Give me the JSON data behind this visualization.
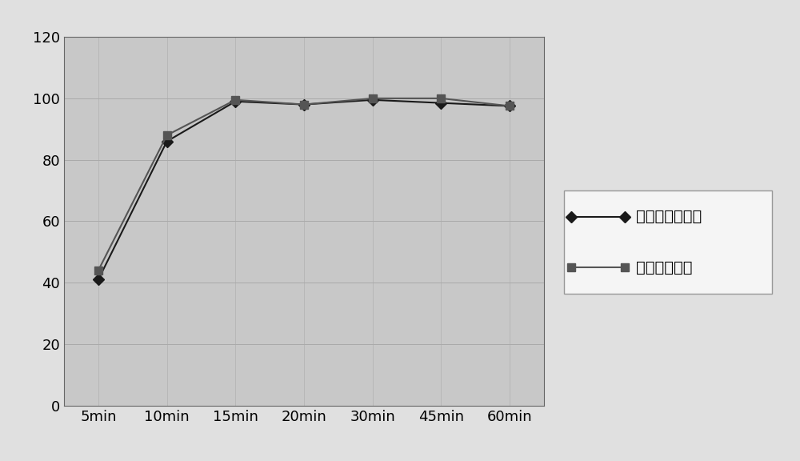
{
  "x_labels": [
    "5min",
    "10min",
    "15min",
    "20min",
    "30min",
    "45min",
    "60min"
  ],
  "x_values": [
    0,
    1,
    2,
    3,
    4,
    5,
    6
  ],
  "series1_name": "自制品氨氯地平",
  "series1_values": [
    41,
    86,
    99,
    98,
    99.5,
    98.5,
    97.5
  ],
  "series1_color": "#1a1a1a",
  "series1_marker": "D",
  "series2_name": "自制品缓沙坦",
  "series2_values": [
    44,
    88,
    99.5,
    98,
    100,
    100,
    97.5
  ],
  "series2_color": "#555555",
  "series2_marker": "s",
  "ylim": [
    0,
    120
  ],
  "yticks": [
    0,
    20,
    40,
    60,
    80,
    100,
    120
  ],
  "plot_bg_color": "#c8c8c8",
  "outer_bg_color": "#e0e0e0",
  "grid_color": "#aaaaaa",
  "legend_bg": "#f5f5f5",
  "legend_edge": "#999999",
  "linewidth": 1.5,
  "markersize": 7,
  "tick_fontsize": 13,
  "legend_fontsize": 14
}
